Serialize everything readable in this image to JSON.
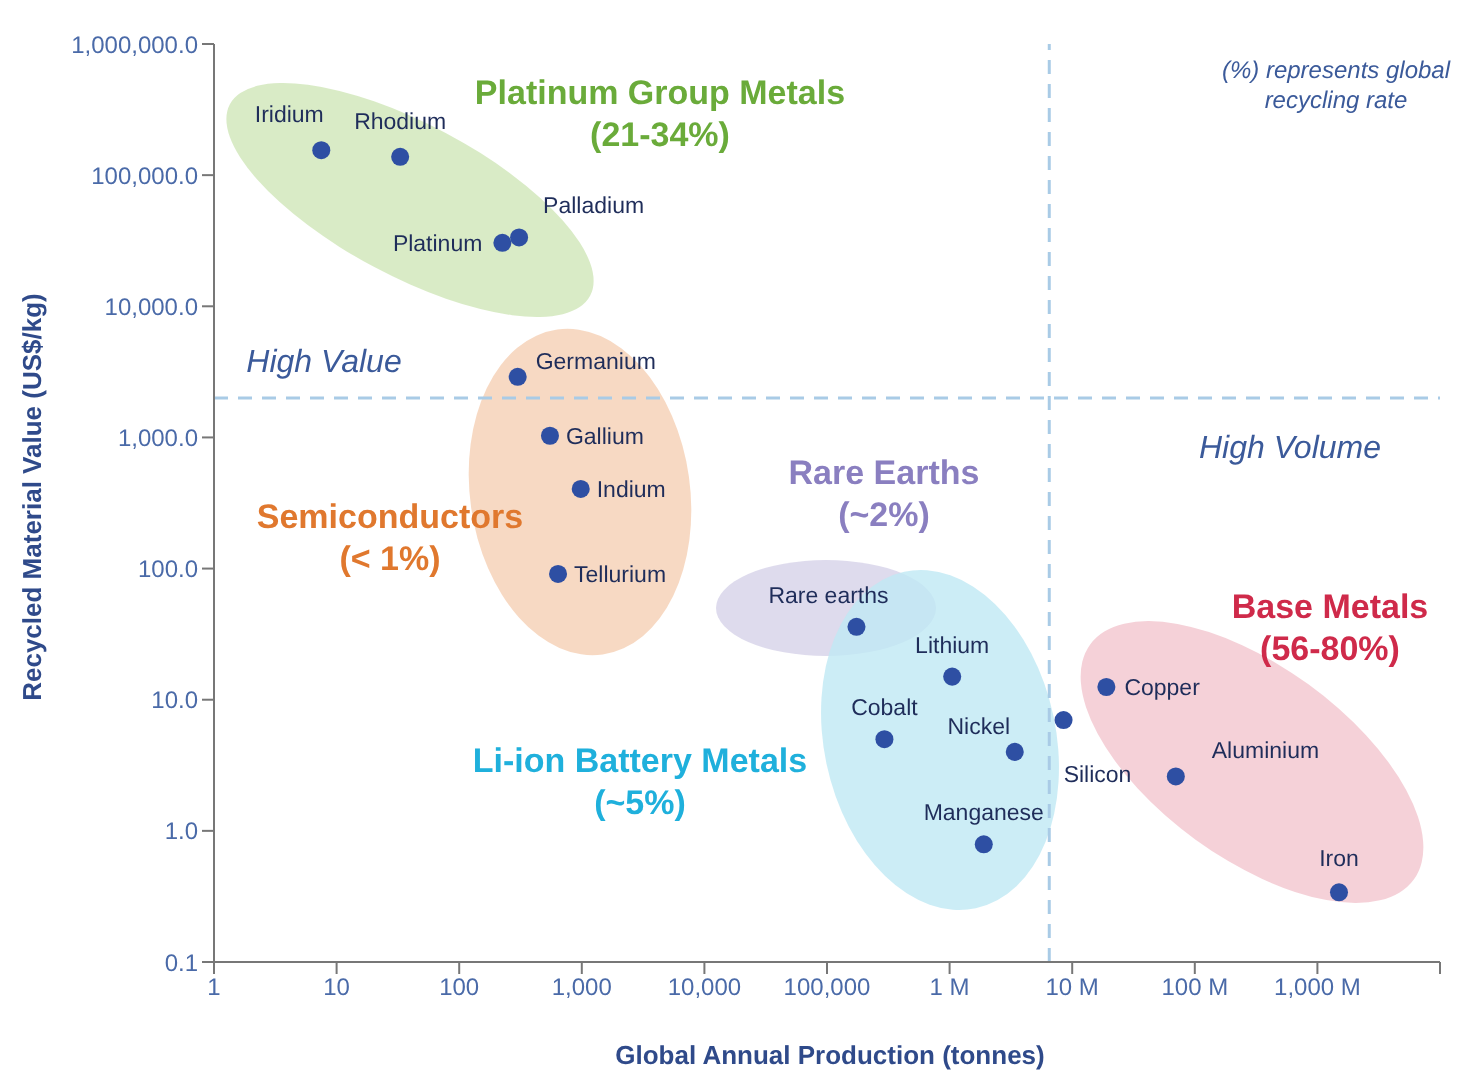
{
  "chart_data": {
    "type": "scatter",
    "xlabel": "Global Annual Production (tonnes)",
    "ylabel": "Recycled Material Value (US$/kg)",
    "log": "xy",
    "marker": "circle",
    "legend": false,
    "grid": false,
    "xlim": [
      1,
      10000000000
    ],
    "xticks": [
      {
        "value": 1,
        "label": "1"
      },
      {
        "value": 10,
        "label": "10"
      },
      {
        "value": 100,
        "label": "100"
      },
      {
        "value": 1000,
        "label": "1,000"
      },
      {
        "value": 10000,
        "label": "10,000"
      },
      {
        "value": 100000,
        "label": "100,000"
      },
      {
        "value": 1000000,
        "label": "1 M"
      },
      {
        "value": 10000000,
        "label": "10 M"
      },
      {
        "value": 100000000,
        "label": "100 M"
      },
      {
        "value": 1000000000,
        "label": "1,000 M"
      },
      {
        "value": 10000000000,
        "label": null
      }
    ],
    "ylim": [
      0.1,
      1000000
    ],
    "yticks": [
      {
        "value": 0.1,
        "label": "0.1"
      },
      {
        "value": 1,
        "label": "1.0"
      },
      {
        "value": 10,
        "label": "10.0"
      },
      {
        "value": 100,
        "label": "100.0"
      },
      {
        "value": 1000,
        "label": "1,000.0"
      },
      {
        "value": 10000,
        "label": "10,000.0"
      },
      {
        "value": 100000,
        "label": "100,000.0"
      },
      {
        "value": 1000000,
        "label": "1,000,000.0"
      }
    ],
    "ref_lines": [
      {
        "axis": "x",
        "value": 6500000,
        "color": "#a9cbe6",
        "line_style": "dashed"
      },
      {
        "axis": "y",
        "value": 2000,
        "color": "#a9cbe6",
        "line_style": "dashed"
      }
    ],
    "annotations": [
      "(%) represents global recycling rate",
      "High Value",
      "High Volume",
      "Platinum Group Metals\n(21-34%)",
      "Semiconductors\n(< 1%)",
      "Rare Earths\n(~2%)",
      "Li-ion Battery Metals\n(~5%)",
      "Base Metals\n(56-80%)"
    ],
    "series": [
      {
        "name": "Iridium",
        "color": "#2e4fa3",
        "x": [
          7.5
        ],
        "values": [
          155000
        ]
      },
      {
        "name": "Rhodium",
        "color": "#2e4fa3",
        "x": [
          33
        ],
        "values": [
          138000
        ]
      },
      {
        "name": "Platinum",
        "color": "#2e4fa3",
        "x": [
          225
        ],
        "values": [
          30500
        ]
      },
      {
        "name": "Palladium",
        "color": "#2e4fa3",
        "x": [
          308
        ],
        "values": [
          33500
        ]
      },
      {
        "name": "Germanium",
        "color": "#2e4fa3",
        "x": [
          300
        ],
        "values": [
          2900
        ]
      },
      {
        "name": "Gallium",
        "color": "#2e4fa3",
        "x": [
          550
        ],
        "values": [
          1030
        ]
      },
      {
        "name": "Indium",
        "color": "#2e4fa3",
        "x": [
          980
        ],
        "values": [
          405
        ]
      },
      {
        "name": "Tellurium",
        "color": "#2e4fa3",
        "x": [
          640
        ],
        "values": [
          91
        ]
      },
      {
        "name": "Rare earths",
        "color": "#2e4fa3",
        "x": [
          174000
        ],
        "values": [
          36
        ]
      },
      {
        "name": "Lithium",
        "color": "#2e4fa3",
        "x": [
          1050000
        ],
        "values": [
          15
        ]
      },
      {
        "name": "Cobalt",
        "color": "#2e4fa3",
        "x": [
          294000
        ],
        "values": [
          5
        ]
      },
      {
        "name": "Nickel",
        "color": "#2e4fa3",
        "x": [
          3400000
        ],
        "values": [
          4
        ]
      },
      {
        "name": "Manganese",
        "color": "#2e4fa3",
        "x": [
          1900000
        ],
        "values": [
          0.79
        ]
      },
      {
        "name": "Silicon",
        "color": "#2e4fa3",
        "x": [
          8500000
        ],
        "values": [
          7
        ]
      },
      {
        "name": "Copper",
        "color": "#2e4fa3",
        "x": [
          19000000
        ],
        "values": [
          12.5
        ]
      },
      {
        "name": "Aluminium",
        "color": "#2e4fa3",
        "x": [
          70000000
        ],
        "values": [
          2.6
        ]
      },
      {
        "name": "Iron",
        "color": "#2e4fa3",
        "x": [
          1500000000
        ],
        "values": [
          0.34
        ]
      }
    ]
  }
}
